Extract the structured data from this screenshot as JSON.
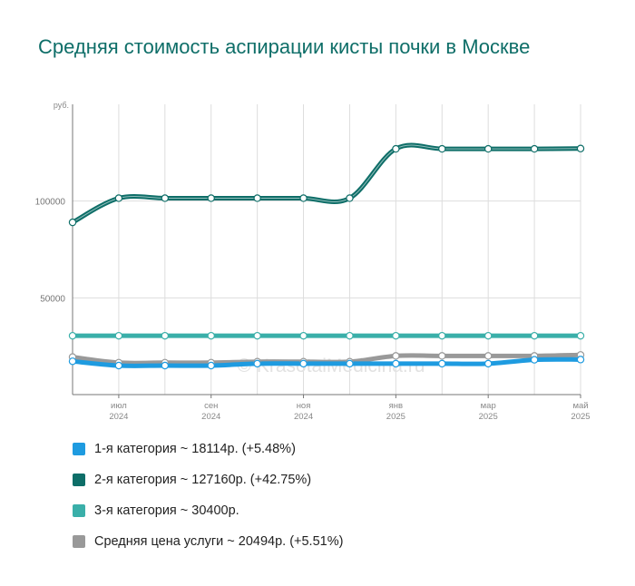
{
  "title": "Средняя стоимость аспирации кисты почки в Москве",
  "watermark": "© KrasotaiMedicina.ru",
  "chart_data": {
    "type": "line",
    "y_unit_label": "руб.",
    "ylim": [
      0,
      150000
    ],
    "y_ticks": [
      {
        "value": 50000,
        "label": "50000"
      },
      {
        "value": 100000,
        "label": "100000"
      }
    ],
    "x": [
      "2024-06",
      "2024-07",
      "2024-08",
      "2024-09",
      "2024-10",
      "2024-11",
      "2024-12",
      "2025-01",
      "2025-02",
      "2025-03",
      "2025-04",
      "2025-05"
    ],
    "x_tick_labels": [
      {
        "index": 1,
        "month": "июл",
        "year": "2024"
      },
      {
        "index": 3,
        "month": "сен",
        "year": "2024"
      },
      {
        "index": 5,
        "month": "ноя",
        "year": "2024"
      },
      {
        "index": 7,
        "month": "янв",
        "year": "2025"
      },
      {
        "index": 9,
        "month": "мар",
        "year": "2025"
      },
      {
        "index": 11,
        "month": "май",
        "year": "2025"
      }
    ],
    "grid": true,
    "legend_position": "bottom",
    "series": [
      {
        "name": "1-я категория",
        "color": "#1e9be0",
        "values": [
          17200,
          15000,
          15000,
          15000,
          16000,
          16000,
          16000,
          16000,
          16000,
          16000,
          18000,
          18114
        ]
      },
      {
        "name": "2-я категория",
        "color": "#0e6e68",
        "values": [
          89000,
          101500,
          101500,
          101500,
          101500,
          101500,
          101500,
          127000,
          127000,
          127000,
          127000,
          127160
        ]
      },
      {
        "name": "3-я категория",
        "color": "#3aafa9",
        "values": [
          30400,
          30400,
          30400,
          30400,
          30400,
          30400,
          30400,
          30400,
          30400,
          30400,
          30400,
          30400
        ]
      },
      {
        "name": "Средняя цена услуги",
        "color": "#999999",
        "values": [
          19400,
          16500,
          16500,
          16500,
          17000,
          17000,
          17000,
          20000,
          20000,
          20000,
          20000,
          20494
        ]
      }
    ]
  },
  "legend": [
    {
      "label": "1-я категория ~ 18114р. (+5.48%)",
      "color": "#1e9be0"
    },
    {
      "label": "2-я категория ~ 127160р. (+42.75%)",
      "color": "#0e6e68"
    },
    {
      "label": "3-я категория ~ 30400р.",
      "color": "#3aafa9"
    },
    {
      "label": "Средняя цена услуги ~ 20494р. (+5.51%)",
      "color": "#999999"
    }
  ]
}
